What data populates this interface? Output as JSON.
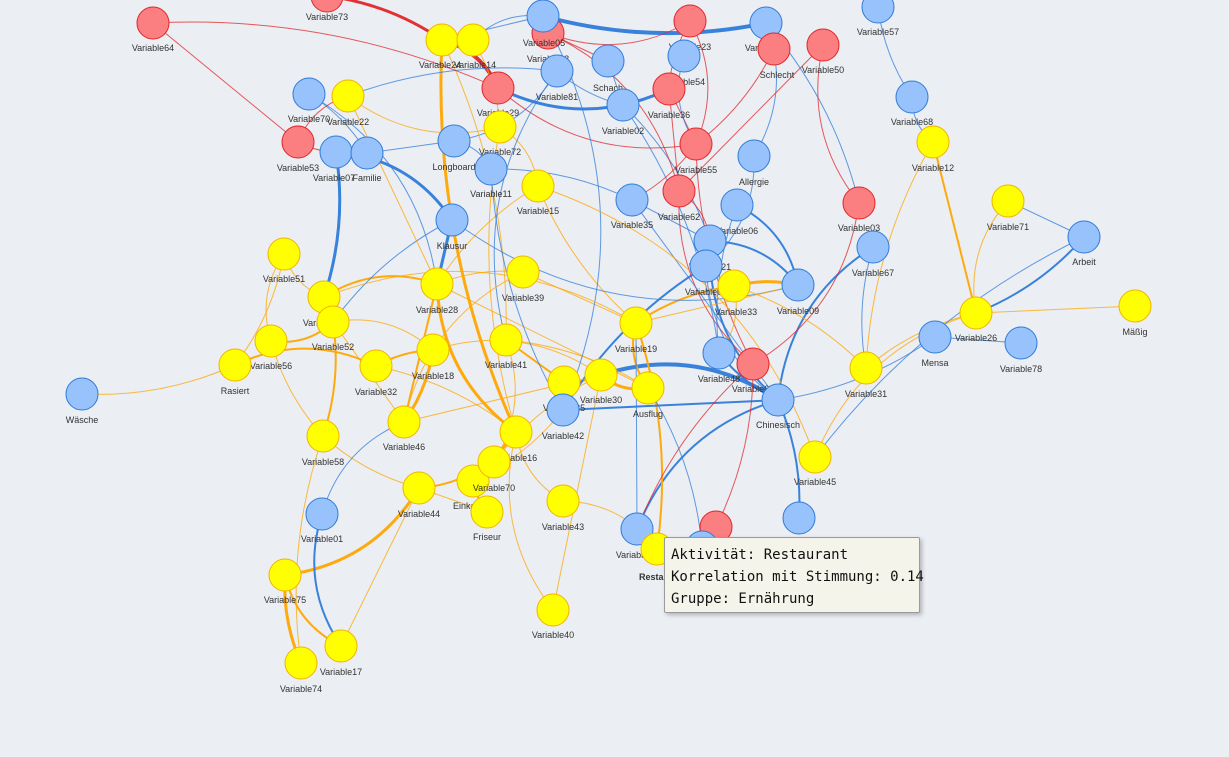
{
  "colors": {
    "activity": "#ffff00",
    "activity_stroke": "#f0b400",
    "positive": "#97c2fc",
    "positive_stroke": "#2f7bd9",
    "negative": "#fb7e81",
    "negative_stroke": "#e0262a",
    "edge_activity": "#ffa500",
    "edge_positive": "#2f7bd9",
    "edge_negative": "#e0262a"
  },
  "nodes": [
    {
      "id": "Variable64",
      "label": "Variable64",
      "group": "neg"
    },
    {
      "id": "Variable73",
      "label": "Variable73",
      "group": "neg"
    },
    {
      "id": "Variable05",
      "label": "Variable05",
      "group": "neg"
    },
    {
      "id": "Variable23",
      "label": "Variable23",
      "group": "neg"
    },
    {
      "id": "Variable47",
      "label": "Variable47",
      "group": "pos"
    },
    {
      "id": "Schlecht",
      "label": "Schlecht",
      "group": "neg"
    },
    {
      "id": "Variable50",
      "label": "Variable50",
      "group": "neg"
    },
    {
      "id": "Variable57",
      "label": "Variable57",
      "group": "pos"
    },
    {
      "id": "Variable24",
      "label": "Variable24",
      "group": "act"
    },
    {
      "id": "Variable14",
      "label": "Variable14",
      "group": "act"
    },
    {
      "id": "Variable38",
      "label": "Variable38",
      "group": "pos"
    },
    {
      "id": "Variable81",
      "label": "Variable81",
      "group": "pos"
    },
    {
      "id": "Schach",
      "label": "Schach",
      "group": "pos"
    },
    {
      "id": "Variable54",
      "label": "Variable54",
      "group": "pos"
    },
    {
      "id": "Variable36",
      "label": "Variable36",
      "group": "neg"
    },
    {
      "id": "Variable70",
      "label": "Variable70",
      "group": "pos"
    },
    {
      "id": "Variable22",
      "label": "Variable22",
      "group": "act"
    },
    {
      "id": "Variable29",
      "label": "Variable29",
      "group": "neg"
    },
    {
      "id": "Variable02",
      "label": "Variable02",
      "group": "pos"
    },
    {
      "id": "Variable68",
      "label": "Variable68",
      "group": "pos"
    },
    {
      "id": "Variable72",
      "label": "Variable72",
      "group": "act"
    },
    {
      "id": "Variable53",
      "label": "Variable53",
      "group": "neg"
    },
    {
      "id": "Variable07",
      "label": "Variable07",
      "group": "pos"
    },
    {
      "id": "Familie",
      "label": "Familie",
      "group": "pos"
    },
    {
      "id": "Longboard",
      "label": "Longboard",
      "group": "pos"
    },
    {
      "id": "Variable11",
      "label": "Variable11",
      "group": "pos"
    },
    {
      "id": "Variable55",
      "label": "Variable55",
      "group": "neg"
    },
    {
      "id": "Allergie",
      "label": "Allergie",
      "group": "pos"
    },
    {
      "id": "Variable12",
      "label": "Variable12",
      "group": "act"
    },
    {
      "id": "Variable15",
      "label": "Variable15",
      "group": "act"
    },
    {
      "id": "Variable35",
      "label": "Variable35",
      "group": "pos"
    },
    {
      "id": "Variable62",
      "label": "Variable62",
      "group": "neg"
    },
    {
      "id": "Variable06",
      "label": "Variable06",
      "group": "pos"
    },
    {
      "id": "Variable03",
      "label": "Variable03",
      "group": "neg"
    },
    {
      "id": "Variable71",
      "label": "Variable71",
      "group": "act"
    },
    {
      "id": "Klausur",
      "label": "Klausur",
      "group": "pos"
    },
    {
      "id": "Variable21",
      "label": "Variable21",
      "group": "pos"
    },
    {
      "id": "Variable67",
      "label": "Variable67",
      "group": "pos"
    },
    {
      "id": "Arbeit",
      "label": "Arbeit",
      "group": "pos"
    },
    {
      "id": "Variable51",
      "label": "Variable51",
      "group": "act"
    },
    {
      "id": "Variable39",
      "label": "Variable39",
      "group": "act"
    },
    {
      "id": "Variable04",
      "label": "Variable04",
      "group": "pos"
    },
    {
      "id": "Variable33",
      "label": "Variable33",
      "group": "act"
    },
    {
      "id": "Variable09",
      "label": "Variable09",
      "group": "pos"
    },
    {
      "id": "Variable76",
      "label": "Variable76",
      "group": "act"
    },
    {
      "id": "Variable28",
      "label": "Variable28",
      "group": "act"
    },
    {
      "id": "Variable52",
      "label": "Variable52",
      "group": "act"
    },
    {
      "id": "Variable56",
      "label": "Variable56",
      "group": "act"
    },
    {
      "id": "Variable41",
      "label": "Variable41",
      "group": "act"
    },
    {
      "id": "Variable19",
      "label": "Variable19",
      "group": "act"
    },
    {
      "id": "Variable26",
      "label": "Variable26",
      "group": "act"
    },
    {
      "id": "Mäßig",
      "label": "Mäßig",
      "group": "act"
    },
    {
      "id": "Mensa",
      "label": "Mensa",
      "group": "pos"
    },
    {
      "id": "Variable78",
      "label": "Variable78",
      "group": "pos"
    },
    {
      "id": "Rasiert",
      "label": "Rasiert",
      "group": "act"
    },
    {
      "id": "Variable32",
      "label": "Variable32",
      "group": "act"
    },
    {
      "id": "Variable18",
      "label": "Variable18",
      "group": "act"
    },
    {
      "id": "Variable48",
      "label": "Variable48",
      "group": "pos"
    },
    {
      "id": "Variable63",
      "label": "Variable63",
      "group": "neg"
    },
    {
      "id": "Variable31",
      "label": "Variable31",
      "group": "act"
    },
    {
      "id": "Wäsche",
      "label": "Wäsche",
      "group": "pos"
    },
    {
      "id": "Variable25",
      "label": "Variable25",
      "group": "act"
    },
    {
      "id": "Variable30",
      "label": "Variable30",
      "group": "act"
    },
    {
      "id": "Ausflug",
      "label": "Ausflug",
      "group": "act"
    },
    {
      "id": "Chinesisch",
      "label": "Chinesisch",
      "group": "pos"
    },
    {
      "id": "Variable42",
      "label": "Variable42",
      "group": "pos"
    },
    {
      "id": "Variable58",
      "label": "Variable58",
      "group": "act"
    },
    {
      "id": "Variable46",
      "label": "Variable46",
      "group": "act"
    },
    {
      "id": "Variable16",
      "label": "Variable16",
      "group": "act"
    },
    {
      "id": "Variable45",
      "label": "Variable45",
      "group": "act"
    },
    {
      "id": "Einkaufen",
      "label": "Einkaufen",
      "group": "act"
    },
    {
      "id": "Variable70b",
      "label": "Variable70",
      "group": "act"
    },
    {
      "id": "Variable44",
      "label": "Variable44",
      "group": "act"
    },
    {
      "id": "Friseur",
      "label": "Friseur",
      "group": "act"
    },
    {
      "id": "Variable43",
      "label": "Variable43",
      "group": "act"
    },
    {
      "id": "Variable01",
      "label": "Variable01",
      "group": "pos"
    },
    {
      "id": "Variable59",
      "label": "Variable59",
      "group": "pos"
    },
    {
      "id": "Restaurant",
      "label": "Restau",
      "group": "act"
    },
    {
      "id": "VariableR",
      "label": "",
      "group": "neg"
    },
    {
      "id": "VariableB",
      "label": "",
      "group": "pos"
    },
    {
      "id": "VariableB2",
      "label": "",
      "group": "pos"
    },
    {
      "id": "Variable75",
      "label": "Variable75",
      "group": "act"
    },
    {
      "id": "Variable40",
      "label": "Variable40",
      "group": "act"
    },
    {
      "id": "Variable17",
      "label": "Variable17",
      "group": "act"
    },
    {
      "id": "Variable74",
      "label": "Variable74",
      "group": "act"
    }
  ],
  "tooltip": {
    "line1": "Aktivität: Restaurant",
    "line2": "Korrelation mit Stimmung: 0.14",
    "line3": "Gruppe: Ernährung"
  }
}
